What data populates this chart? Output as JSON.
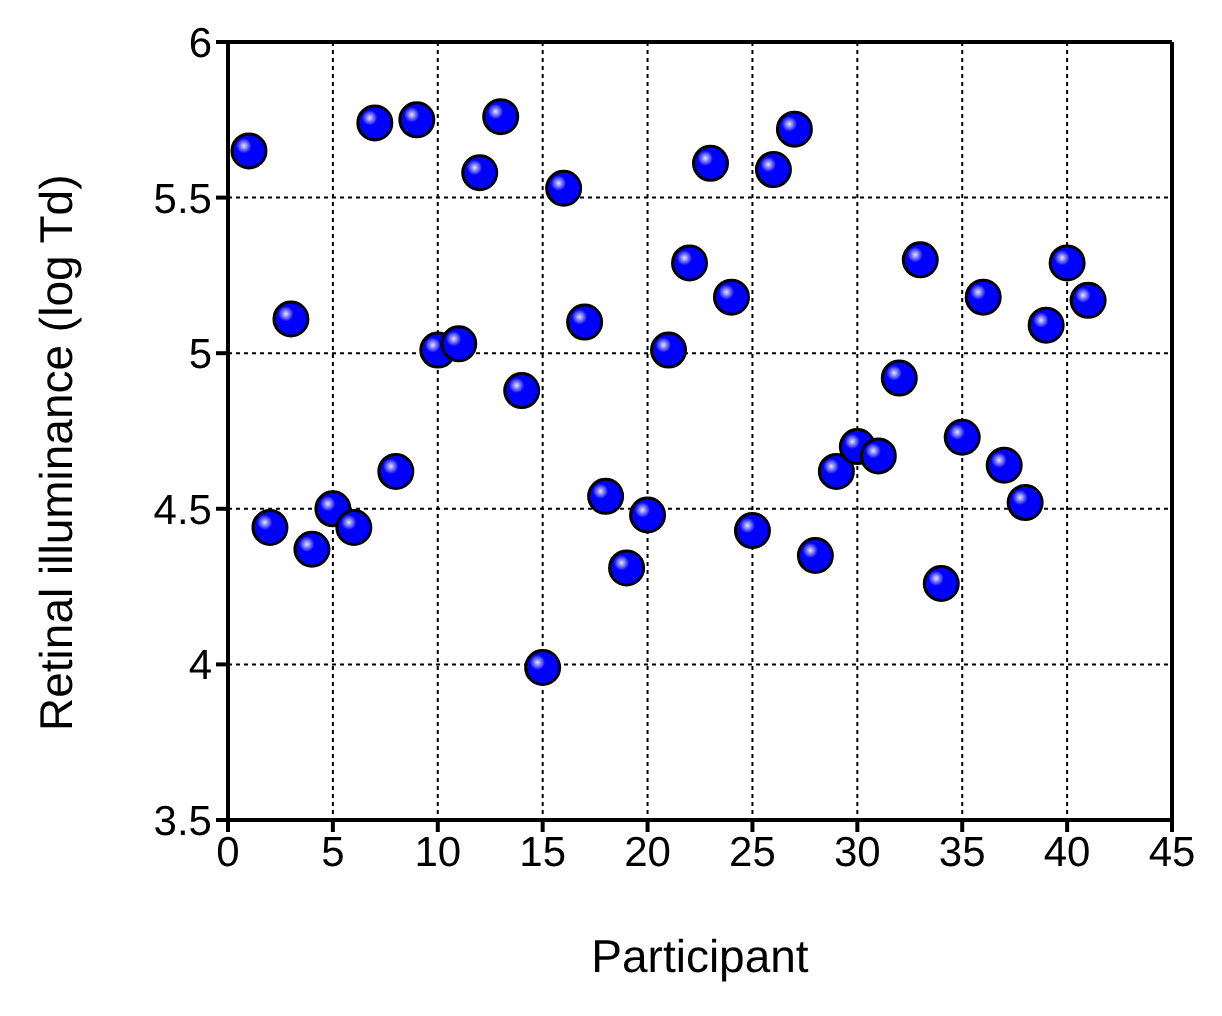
{
  "chart_data": {
    "type": "scatter",
    "xlabel": "Participant",
    "ylabel": "Retinal illuminance (log Td)",
    "x": [
      1,
      2,
      3,
      4,
      5,
      6,
      7,
      8,
      9,
      10,
      11,
      12,
      13,
      14,
      15,
      16,
      17,
      18,
      19,
      20,
      21,
      22,
      23,
      24,
      25,
      26,
      27,
      28,
      29,
      30,
      31,
      32,
      33,
      34,
      35,
      36,
      37,
      38,
      39,
      40,
      41
    ],
    "series": [
      {
        "color": "#0000ff",
        "values": [
          5.65,
          4.44,
          5.11,
          4.37,
          4.5,
          4.44,
          5.74,
          4.62,
          5.75,
          5.01,
          5.03,
          5.58,
          5.76,
          4.88,
          3.99,
          5.53,
          5.1,
          4.54,
          4.31,
          4.48,
          5.01,
          5.29,
          5.61,
          5.18,
          4.43,
          5.59,
          5.72,
          4.35,
          4.62,
          4.7,
          4.67,
          4.92,
          5.3,
          4.26,
          4.73,
          5.18,
          4.64,
          4.52,
          5.09,
          5.29,
          5.17
        ]
      }
    ],
    "xlim": [
      0,
      45
    ],
    "xticks": [
      0,
      5,
      10,
      15,
      20,
      25,
      30,
      35,
      40,
      45
    ],
    "ylim": [
      3.5,
      6
    ],
    "yticks": [
      3.5,
      4,
      4.5,
      5,
      5.5,
      6
    ],
    "grid": true,
    "marker": "circle"
  }
}
